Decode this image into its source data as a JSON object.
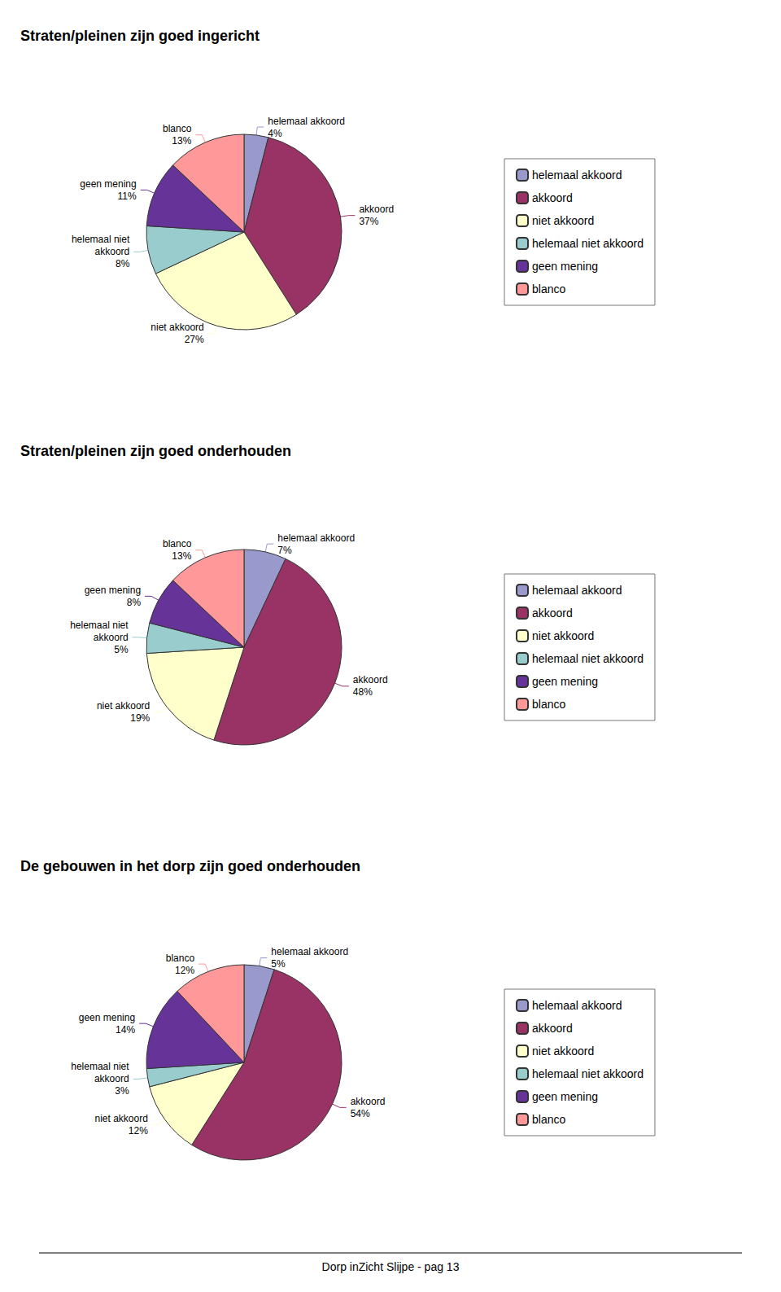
{
  "chart_data": [
    {
      "type": "pie",
      "title": "Straten/pleinen zijn goed ingericht",
      "categories": [
        "helemaal akkoord",
        "akkoord",
        "niet akkoord",
        "helemaal niet akkoord",
        "geen mening",
        "blanco"
      ],
      "values": [
        4,
        37,
        27,
        8,
        11,
        13
      ],
      "value_labels": [
        "helemaal akkoord\n4%",
        "akkoord\n37%",
        "niet akkoord\n27%",
        "helemaal niet\nakkoord\n8%",
        "geen mening\n11%",
        "blanco\n13%"
      ],
      "colors": [
        "#9999cc",
        "#993366",
        "#ffffcc",
        "#99cccc",
        "#663399",
        "#ff9999"
      ],
      "data_labels": true,
      "legend": "right"
    },
    {
      "type": "pie",
      "title": "Straten/pleinen zijn goed onderhouden",
      "categories": [
        "helemaal akkoord",
        "akkoord",
        "niet akkoord",
        "helemaal niet akkoord",
        "geen mening",
        "blanco"
      ],
      "values": [
        7,
        48,
        19,
        5,
        8,
        13
      ],
      "value_labels": [
        "helemaal akkoord\n7%",
        "akkoord\n48%",
        "niet akkoord\n19%",
        "helemaal niet\nakkoord\n5%",
        "geen mening\n8%",
        "blanco\n13%"
      ],
      "colors": [
        "#9999cc",
        "#993366",
        "#ffffcc",
        "#99cccc",
        "#663399",
        "#ff9999"
      ],
      "data_labels": true,
      "legend": "right"
    },
    {
      "type": "pie",
      "title": "De gebouwen in het dorp zijn goed onderhouden",
      "categories": [
        "helemaal akkoord",
        "akkoord",
        "niet akkoord",
        "helemaal niet akkoord",
        "geen mening",
        "blanco"
      ],
      "values": [
        5,
        54,
        12,
        3,
        14,
        12
      ],
      "value_labels": [
        "helemaal akkoord\n5%",
        "akkoord\n54%",
        "niet akkoord\n12%",
        "helemaal niet\nakkoord\n3%",
        "geen mening\n14%",
        "blanco\n12%"
      ],
      "colors": [
        "#9999cc",
        "#993366",
        "#ffffcc",
        "#99cccc",
        "#663399",
        "#ff9999"
      ],
      "data_labels": true,
      "legend": "right",
      "annotations": [
        "Dorp inZicht Slijpe - pag 13"
      ]
    }
  ]
}
